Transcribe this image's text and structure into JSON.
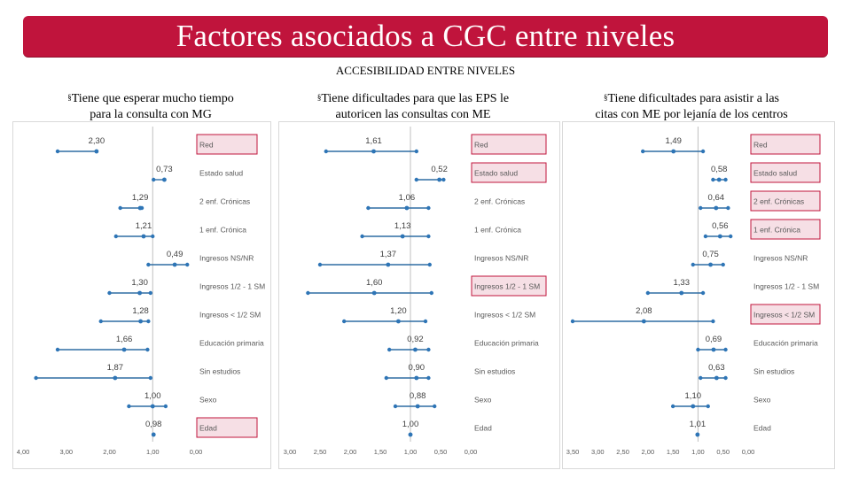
{
  "header": {
    "title": "Factores asociados a CGC entre niveles",
    "subtitle": "ACCESIBILIDAD ENTRE NIVELES"
  },
  "colors": {
    "title_bg": "#c0143c",
    "line": "#2e6da4",
    "marker": "#2e75b6",
    "highlight_border": "#c0143c",
    "highlight_fill": "#f6dfe5",
    "frame": "#d9d9d9"
  },
  "panels": [
    {
      "bullet": "§",
      "title_line1": "Tiene que esperar mucho tiempo",
      "title_line2": "para la consulta con MG"
    },
    {
      "bullet": "§",
      "title_line1": "Tiene dificultades para que las EPS le",
      "title_line2": "autoricen las consultas con ME"
    },
    {
      "bullet": "§",
      "title_line1": "Tiene dificultades para asistir a las",
      "title_line2": "citas con ME por lejanía de los centros"
    }
  ],
  "chart_data": [
    {
      "type": "forest",
      "title": "Tiene que esperar mucho tiempo para la consulta con MG",
      "categories": [
        "Red",
        "Estado salud",
        "2 enf. Crónicas",
        "1 enf. Crónica",
        "Ingresos NS/NR",
        "Ingresos 1/2 - 1 SM",
        "Ingresos < 1/2 SM",
        "Educación primaria",
        "Sin estudios",
        "Sexo",
        "Edad"
      ],
      "values": [
        2.3,
        0.73,
        1.29,
        1.21,
        0.49,
        1.3,
        1.28,
        1.66,
        1.87,
        1.0,
        0.98
      ],
      "value_labels": [
        "2,30",
        "0,73",
        "1,29",
        "1,21",
        "0,49",
        "1,30",
        "1,28",
        "1,66",
        "1,87",
        "1,00",
        "0,98"
      ],
      "ci_low": [
        2.3,
        0.73,
        1.25,
        1.0,
        0.2,
        1.05,
        1.1,
        1.12,
        1.05,
        0.7,
        0.98
      ],
      "ci_high": [
        3.2,
        0.98,
        1.75,
        1.85,
        1.1,
        2.0,
        2.2,
        3.2,
        3.7,
        1.55,
        0.98
      ],
      "highlighted": [
        "Red",
        "Edad"
      ],
      "x_ticks": [
        "4,00",
        "3,00",
        "2,00",
        "1,00",
        "0,00"
      ],
      "xlim": [
        4.0,
        0.0
      ]
    },
    {
      "type": "forest",
      "title": "Tiene dificultades para que las EPS le autoricen las consultas con ME",
      "categories": [
        "Red",
        "Estado salud",
        "2 enf. Crónicas",
        "1 enf. Crónica",
        "Ingresos NS/NR",
        "Ingresos 1/2 - 1 SM",
        "Ingresos < 1/2 SM",
        "Educación primaria",
        "Sin estudios",
        "Sexo",
        "Edad"
      ],
      "values": [
        1.61,
        0.52,
        1.06,
        1.13,
        1.37,
        1.6,
        1.2,
        0.92,
        0.9,
        0.88,
        1.0
      ],
      "value_labels": [
        "1,61",
        "0,52",
        "1,06",
        "1,13",
        "1,37",
        "1,60",
        "1,20",
        "0,92",
        "0,90",
        "0,88",
        "1,00"
      ],
      "ci_low": [
        0.9,
        0.45,
        0.7,
        0.7,
        0.68,
        0.65,
        0.75,
        0.7,
        0.7,
        0.6,
        1.0
      ],
      "ci_high": [
        2.4,
        0.9,
        1.7,
        1.8,
        2.5,
        2.7,
        2.1,
        1.35,
        1.4,
        1.25,
        1.0
      ],
      "highlighted": [
        "Red",
        "Estado salud",
        "Ingresos 1/2 - 1 SM"
      ],
      "x_ticks": [
        "3,00",
        "2,50",
        "2,00",
        "1,50",
        "1,00",
        "0,50",
        "0,00"
      ],
      "xlim": [
        3.0,
        0.0
      ]
    },
    {
      "type": "forest",
      "title": "Tiene dificultades para asistir a las citas con ME por lejanía de los centros",
      "categories": [
        "Red",
        "Estado salud",
        "2 enf. Crónicas",
        "1 enf. Crónica",
        "Ingresos NS/NR",
        "Ingresos 1/2 - 1 SM",
        "Ingresos < 1/2 SM",
        "Educación primaria",
        "Sin estudios",
        "Sexo",
        "Edad"
      ],
      "values": [
        1.49,
        0.58,
        0.64,
        0.56,
        0.75,
        1.33,
        2.08,
        0.69,
        0.63,
        1.1,
        1.01
      ],
      "value_labels": [
        "1,49",
        "0,58",
        "0,64",
        "0,56",
        "0,75",
        "1,33",
        "2,08",
        "0,69",
        "0,63",
        "1,10",
        "1,01"
      ],
      "ci_low": [
        0.9,
        0.45,
        0.4,
        0.35,
        0.5,
        0.9,
        0.7,
        0.45,
        0.45,
        0.8,
        1.01
      ],
      "ci_high": [
        2.1,
        0.7,
        0.95,
        0.85,
        1.1,
        2.0,
        3.5,
        1.0,
        0.95,
        1.5,
        1.01
      ],
      "highlighted": [
        "Red",
        "Estado salud",
        "2 enf. Crónicas",
        "1 enf. Crónica",
        "Ingresos < 1/2 SM"
      ],
      "x_ticks": [
        "3,50",
        "3,00",
        "2,50",
        "2,00",
        "1,50",
        "1,00",
        "0,50",
        "0,00"
      ],
      "xlim": [
        3.5,
        0.0
      ]
    }
  ]
}
